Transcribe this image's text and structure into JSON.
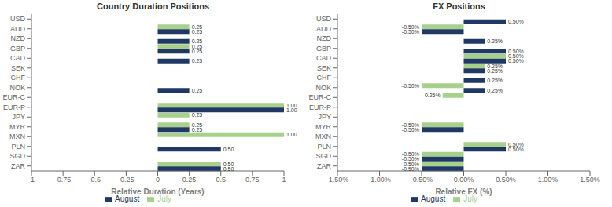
{
  "chart_data": [
    {
      "type": "bar",
      "orientation": "horizontal",
      "title": "Country Duration Positions",
      "xlabel": "Relative Duration (Years)",
      "categories": [
        "USD",
        "AUD",
        "NZD",
        "GBP",
        "CAD",
        "SEK",
        "CHF",
        "NOK",
        "EUR-C",
        "EUR-P",
        "JPY",
        "MYR",
        "MXN",
        "PLN",
        "SGD",
        "ZAR"
      ],
      "series": [
        {
          "name": "July",
          "color": "#a8d08d",
          "values": [
            0,
            0.25,
            0,
            0.25,
            0,
            0,
            0,
            0,
            0,
            1.0,
            0.25,
            0.25,
            1.0,
            0,
            0,
            0.5
          ],
          "value_labels": [
            null,
            "0.25",
            null,
            "0.25",
            null,
            null,
            null,
            null,
            null,
            "1.00",
            "0.25",
            "0.25",
            "1.00",
            null,
            null,
            "0.50"
          ]
        },
        {
          "name": "August",
          "color": "#1f3864",
          "values": [
            0,
            0.25,
            0.25,
            0.25,
            0.25,
            0,
            0,
            0.25,
            0,
            1.0,
            0,
            0.25,
            0,
            0.5,
            0,
            0.5
          ],
          "value_labels": [
            null,
            "0.25",
            "0.25",
            "0.25",
            "0.25",
            null,
            null,
            "0.25",
            null,
            "1.00",
            null,
            "0.25",
            null,
            "0.50",
            null,
            "0.50"
          ]
        }
      ],
      "xlim": [
        -1,
        1
      ],
      "xticks": [
        -1,
        -0.75,
        -0.5,
        -0.25,
        0,
        0.25,
        0.5,
        0.75,
        1
      ],
      "data_labels": true,
      "legend": "bottom",
      "grid": false
    },
    {
      "type": "bar",
      "orientation": "horizontal",
      "title": "FX Positions",
      "xlabel": "Relative FX (%)",
      "categories": [
        "USD",
        "AUD",
        "NZD",
        "GBP",
        "CAD",
        "SEK",
        "CHF",
        "NOK",
        "EUR-C",
        "EUR-P",
        "JPY",
        "MYR",
        "MXN",
        "PLN",
        "SGD",
        "ZAR"
      ],
      "series": [
        {
          "name": "July",
          "color": "#a8d08d",
          "values": [
            0,
            -0.5,
            0,
            0,
            0.5,
            0.25,
            0,
            -0.5,
            -0.25,
            0,
            0,
            -0.5,
            0,
            0.5,
            -0.5,
            -0.5
          ],
          "value_labels": [
            null,
            "-0.50%",
            null,
            null,
            "0.50%",
            "0.25%",
            null,
            "-0.50%",
            "-0.25%",
            null,
            null,
            "-0.50%",
            null,
            "0.50%",
            "-0.50%",
            "-0.50%"
          ]
        },
        {
          "name": "August",
          "color": "#1f3864",
          "values": [
            0.5,
            -0.5,
            0.25,
            0.5,
            0.5,
            0.25,
            0.25,
            0.25,
            0,
            0,
            0,
            -0.5,
            0,
            0.5,
            -0.5,
            -0.5
          ],
          "value_labels": [
            "0.50%",
            "-0.50%",
            "0.25%",
            "0.50%",
            "0.50%",
            "0.25%",
            "0.25%",
            "0.25%",
            null,
            null,
            null,
            "-0.50%",
            null,
            "0.50%",
            "-0.50%",
            "-0.50%"
          ]
        }
      ],
      "xlim": [
        -1.5,
        1.5
      ],
      "xticks": [
        {
          "value": -1.5,
          "label": "-1.50%"
        },
        {
          "value": -1.0,
          "label": "-1.00%"
        },
        {
          "value": -0.5,
          "label": "-0.50%"
        },
        {
          "value": 0.0,
          "label": "0.00%"
        },
        {
          "value": 0.5,
          "label": "0.50%"
        },
        {
          "value": 1.0,
          "label": "1.00%"
        },
        {
          "value": 1.5,
          "label": "1.50%"
        }
      ],
      "data_labels": true,
      "legend": "bottom",
      "grid": false
    }
  ]
}
